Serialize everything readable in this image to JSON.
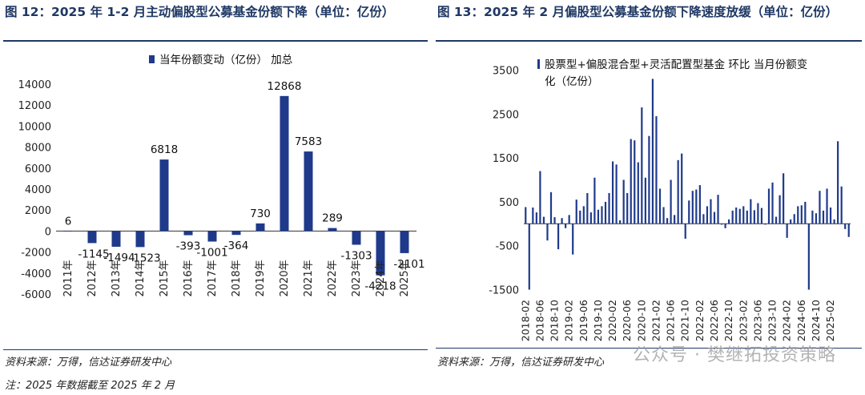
{
  "panels": [
    {
      "title": "图 12：2025 年 1-2 月主动偏股型公募基金份额下降（单位：亿份）",
      "source": "资料来源：万得，信达证券研发中心",
      "note": "注：2025 年数据截至 2025 年 2 月"
    },
    {
      "title": "图 13：2025 年 2 月偏股型公募基金份额下降速度放缓（单位：亿份）",
      "source": "资料来源：万得，信达证券研发中心"
    }
  ],
  "watermark": "公众号 · 樊继拓投资策略",
  "colors": {
    "bar": "#1f3a8a",
    "title": "#1f3864"
  },
  "chart_data": [
    {
      "type": "bar",
      "categories": [
        "2011年",
        "2012年",
        "2013年",
        "2014年",
        "2015年",
        "2016年",
        "2017年",
        "2018年",
        "2019年",
        "2020年",
        "2021年",
        "2022年",
        "2023年",
        "2024年",
        "2025年"
      ],
      "series": [
        {
          "name": "当年份额变动（亿份） 加总",
          "values": [
            6,
            -1145,
            -1494,
            -1523,
            6818,
            -393,
            -1001,
            -364,
            730,
            12868,
            7583,
            289,
            -1303,
            -4218,
            -2101
          ]
        }
      ],
      "data_labels": [
        "6",
        "-1145",
        "-1494",
        "-1523",
        "6818",
        "-393",
        "-1001",
        "-364",
        "730",
        "12868",
        "7583",
        "289",
        "-1303",
        "-4218",
        "-2101"
      ],
      "ylim": [
        -6000,
        14000
      ],
      "yticks": [
        "-6000",
        "-4000",
        "-2000",
        "0",
        "2000",
        "4000",
        "6000",
        "8000",
        "10000",
        "12000",
        "14000"
      ],
      "legend": "top"
    },
    {
      "type": "bar",
      "x_tick_labels": [
        "2018-02",
        "2018-06",
        "2018-10",
        "2019-02",
        "2019-06",
        "2019-10",
        "2020-02",
        "2020-06",
        "2020-10",
        "2021-02",
        "2021-06",
        "2021-10",
        "2022-02",
        "2022-06",
        "2022-10",
        "2023-02",
        "2023-06",
        "2023-10",
        "2024-02",
        "2024-06",
        "2024-10",
        "2025-02"
      ],
      "series": [
        {
          "name": "股票型+偏股混合型+灵活配置型基金 环比 当月份额变化（亿份）",
          "values": [
            380,
            -1500,
            370,
            260,
            1200,
            160,
            -380,
            720,
            150,
            -580,
            130,
            -100,
            200,
            -700,
            550,
            300,
            400,
            700,
            260,
            1050,
            320,
            400,
            500,
            700,
            1420,
            1350,
            80,
            1000,
            700,
            1930,
            1900,
            1400,
            2650,
            1050,
            2000,
            3300,
            2450,
            800,
            380,
            130,
            1000,
            200,
            1450,
            1600,
            -340,
            530,
            750,
            780,
            880,
            220,
            400,
            560,
            270,
            660,
            -20,
            -100,
            100,
            300,
            370,
            340,
            400,
            300,
            560,
            310,
            470,
            360,
            -20,
            800,
            940,
            160,
            650,
            1150,
            -320,
            100,
            220,
            400,
            420,
            500,
            -1500,
            300,
            240,
            750,
            300,
            800,
            370,
            100,
            1880,
            850,
            -120,
            -300
          ]
        }
      ],
      "ylim": [
        -1600,
        3600
      ],
      "yticks": [
        "-1500",
        "-500",
        "500",
        "1500",
        "2500",
        "3500"
      ],
      "legend": "top"
    }
  ]
}
